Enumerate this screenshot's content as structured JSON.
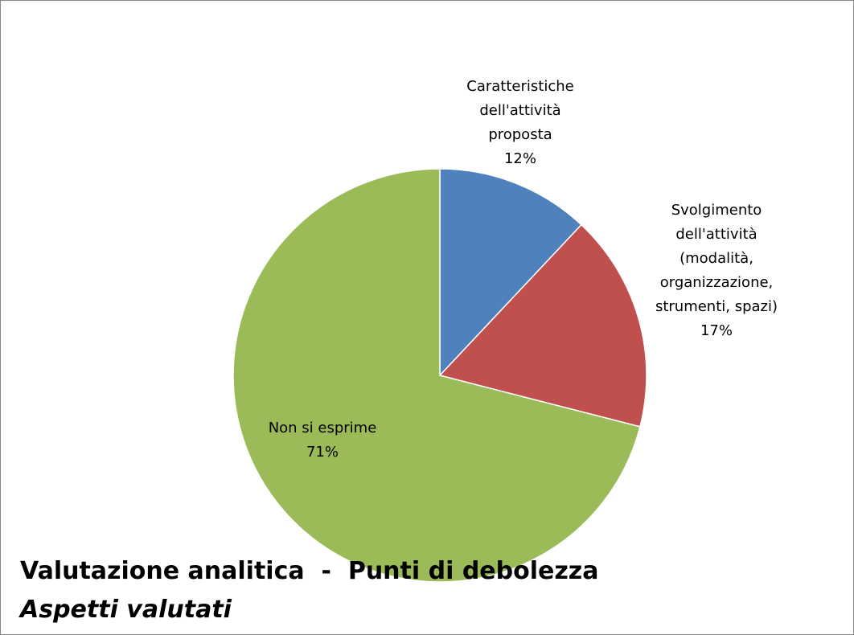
{
  "chart_data": {
    "type": "pie",
    "title": "Valutazione analitica  -  Punti di debolezza",
    "subtitle": "Aspetti valutati",
    "categories": [
      "Caratteristiche dell'attività proposta",
      "Svolgimento dell'attività (modalità, organizzazione, strumenti, spazi)",
      "Non si esprime"
    ],
    "values": [
      12,
      17,
      71
    ],
    "value_labels": [
      "12%",
      "17%",
      "71%"
    ],
    "colors": [
      "#4f81bd",
      "#c0504d",
      "#9bbb59"
    ]
  }
}
